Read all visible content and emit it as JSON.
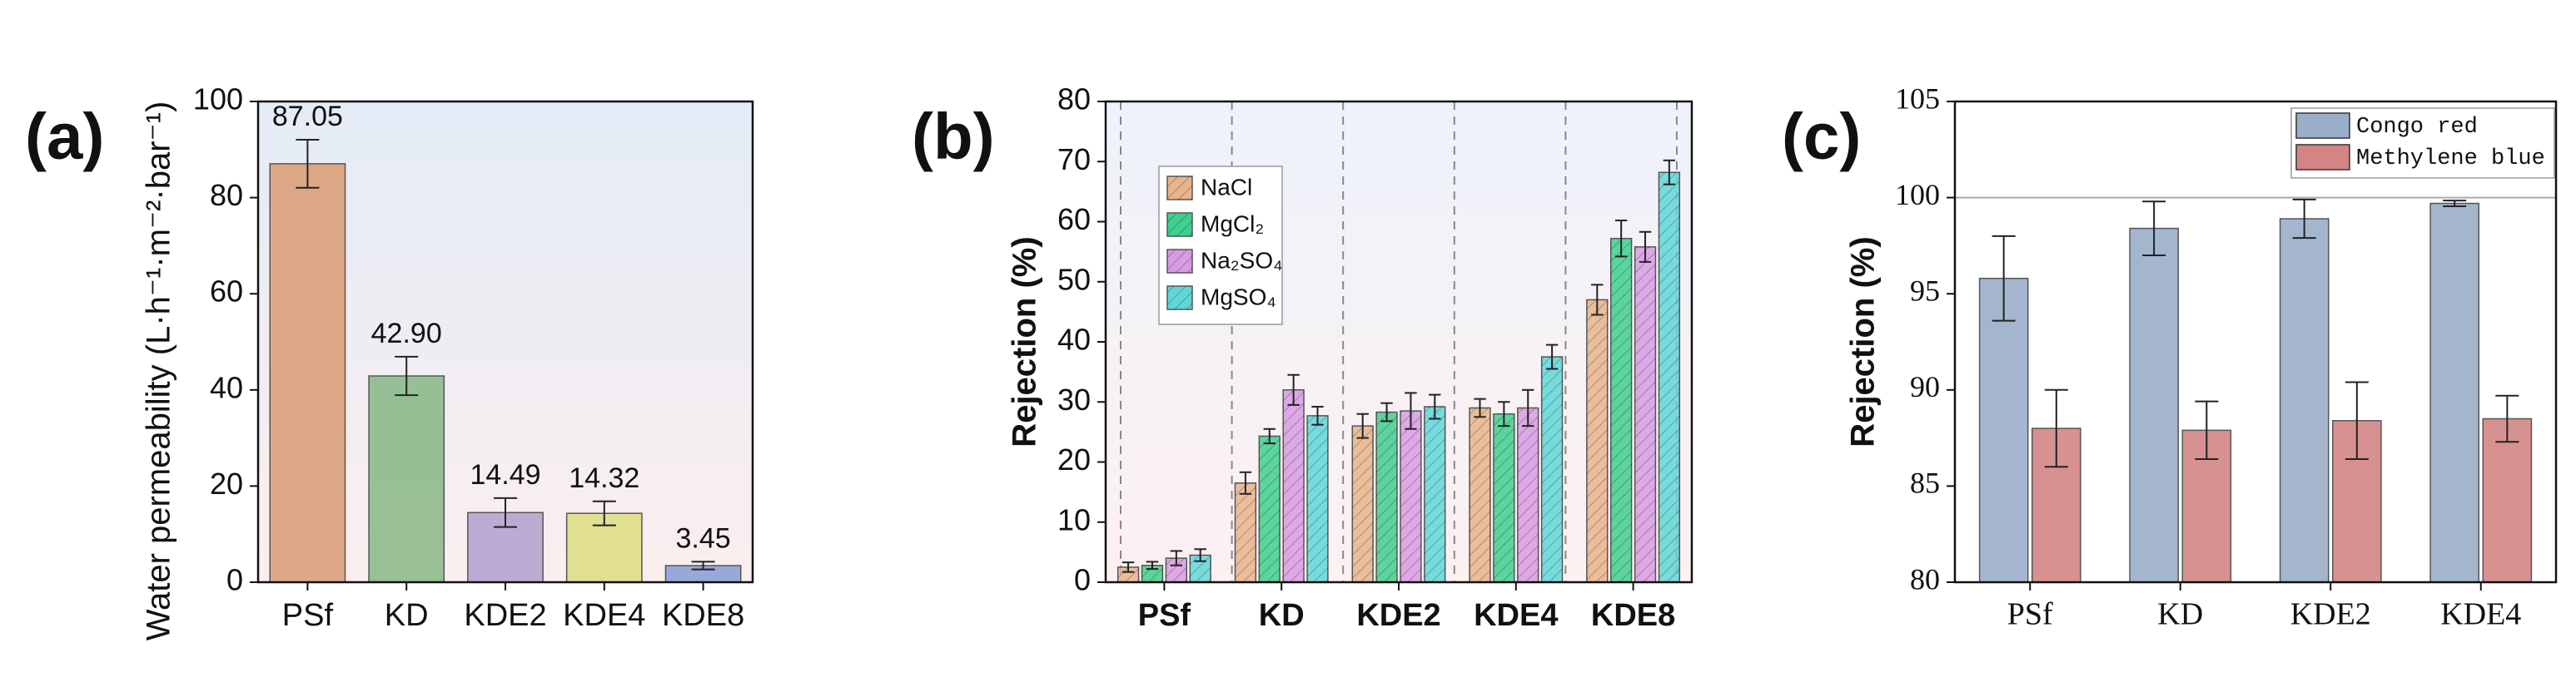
{
  "chart_data": [
    {
      "type": "bar",
      "panel_label": "(a)",
      "ylabel": "Water permeability (L·h⁻¹·m⁻²·bar⁻¹)",
      "categories": [
        "PSf",
        "KD",
        "KDE2",
        "KDE4",
        "KDE8"
      ],
      "values": [
        87.05,
        42.9,
        14.49,
        14.32,
        3.45
      ],
      "value_labels": [
        "87.05",
        "42.90",
        "14.49",
        "14.32",
        "3.45"
      ],
      "errors": [
        5,
        4,
        3,
        2.5,
        0.8
      ],
      "colors": [
        "#dba07a",
        "#8db98b",
        "#b6a3cf",
        "#dedd86",
        "#8e9ed8"
      ],
      "ylim": [
        0,
        100
      ],
      "yticks": [
        0,
        20,
        40,
        60,
        80,
        100
      ]
    },
    {
      "type": "grouped_bar",
      "panel_label": "(b)",
      "ylabel": "Rejection (%)",
      "categories": [
        "PSf",
        "KD",
        "KDE2",
        "KDE4",
        "KDE8"
      ],
      "series": [
        {
          "name": "NaCl",
          "color": "#e8b48b",
          "values": [
            2.5,
            16.5,
            26,
            29,
            47
          ],
          "errors": [
            0.8,
            1.8,
            2,
            1.5,
            2.5
          ]
        },
        {
          "name": "MgCl₂",
          "color": "#3fcf8e",
          "values": [
            2.8,
            24.3,
            28.3,
            28,
            57.2
          ],
          "errors": [
            0.6,
            1.2,
            1.5,
            2,
            3
          ]
        },
        {
          "name": "Na₂SO₄",
          "color": "#d79be2",
          "values": [
            4,
            32,
            28.5,
            29,
            55.8
          ],
          "errors": [
            1.2,
            2.5,
            3,
            3,
            2.5
          ]
        },
        {
          "name": "MgSO₄",
          "color": "#5fd7d7",
          "values": [
            4.5,
            27.7,
            29.2,
            37.5,
            68.2
          ],
          "errors": [
            1,
            1.5,
            2,
            2,
            2
          ]
        }
      ],
      "ylim": [
        0,
        80
      ],
      "yticks": [
        0,
        10,
        20,
        30,
        40,
        50,
        60,
        70,
        80
      ]
    },
    {
      "type": "grouped_bar",
      "panel_label": "(c)",
      "ylabel": "Rejection (%)",
      "categories": [
        "PSf",
        "KD",
        "KDE2",
        "KDE4"
      ],
      "series": [
        {
          "name": "Congo red",
          "color": "#9aaec9",
          "values": [
            95.8,
            98.4,
            98.9,
            99.7
          ],
          "errors": [
            2.2,
            1.4,
            1.0,
            0.15
          ]
        },
        {
          "name": "Methylene blue",
          "color": "#d38585",
          "values": [
            88.0,
            87.9,
            88.4,
            88.5
          ],
          "errors": [
            2.0,
            1.5,
            2.0,
            1.2
          ]
        }
      ],
      "ylim": [
        80,
        105
      ],
      "yticks": [
        80,
        85,
        90,
        95,
        100,
        105
      ]
    }
  ]
}
